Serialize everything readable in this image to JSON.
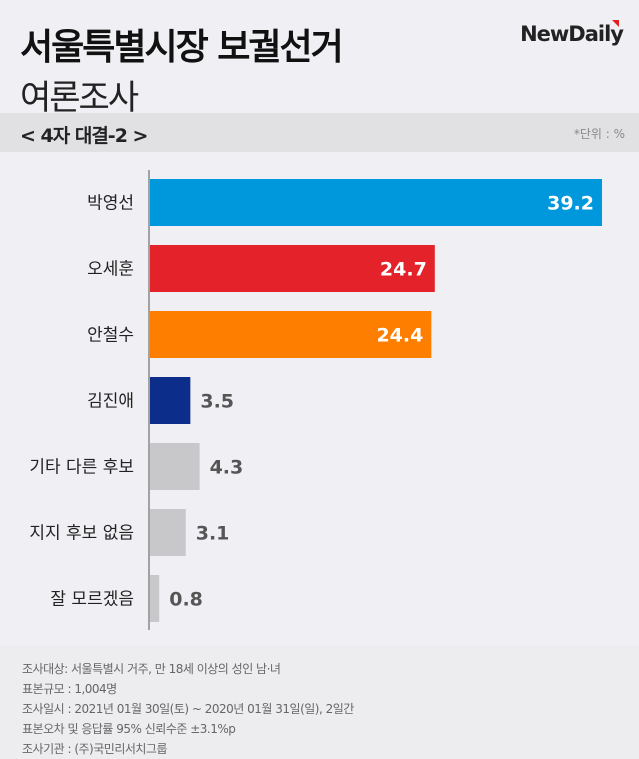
{
  "header": {
    "title": "서울특별시장 보궐선거",
    "subtitle": "여론조사",
    "logo": "NewDaily",
    "section": "< 4자 대결-2 >",
    "unit": "*단위 : %"
  },
  "chart_data": {
    "type": "bar",
    "orientation": "horizontal",
    "categories": [
      "박영선",
      "오세훈",
      "안철수",
      "김진애",
      "기타 다른 후보",
      "지지 후보 없음",
      "잘 모르겠음"
    ],
    "values": [
      39.2,
      24.7,
      24.4,
      3.5,
      4.3,
      3.1,
      0.8
    ],
    "colors": [
      "#0098dc",
      "#e3222a",
      "#fe7f00",
      "#0c2e8a",
      "#c8c8cb",
      "#c8c8cb",
      "#c8c8cb"
    ],
    "xlim": [
      0,
      40
    ],
    "grid": false
  },
  "footer": [
    "조사대상: 서울특별시 거주, 만 18세 이상의 성인 남·녀",
    "표본규모 : 1,004명",
    "조사일시 : 2021년 01월 30일(토) ~ 2020년 01월 31일(일), 2일간",
    "표본오차 및 응답률 95% 신뢰수준 ±3.1%p",
    "조사기관 : (주)국민리서치그룹"
  ]
}
